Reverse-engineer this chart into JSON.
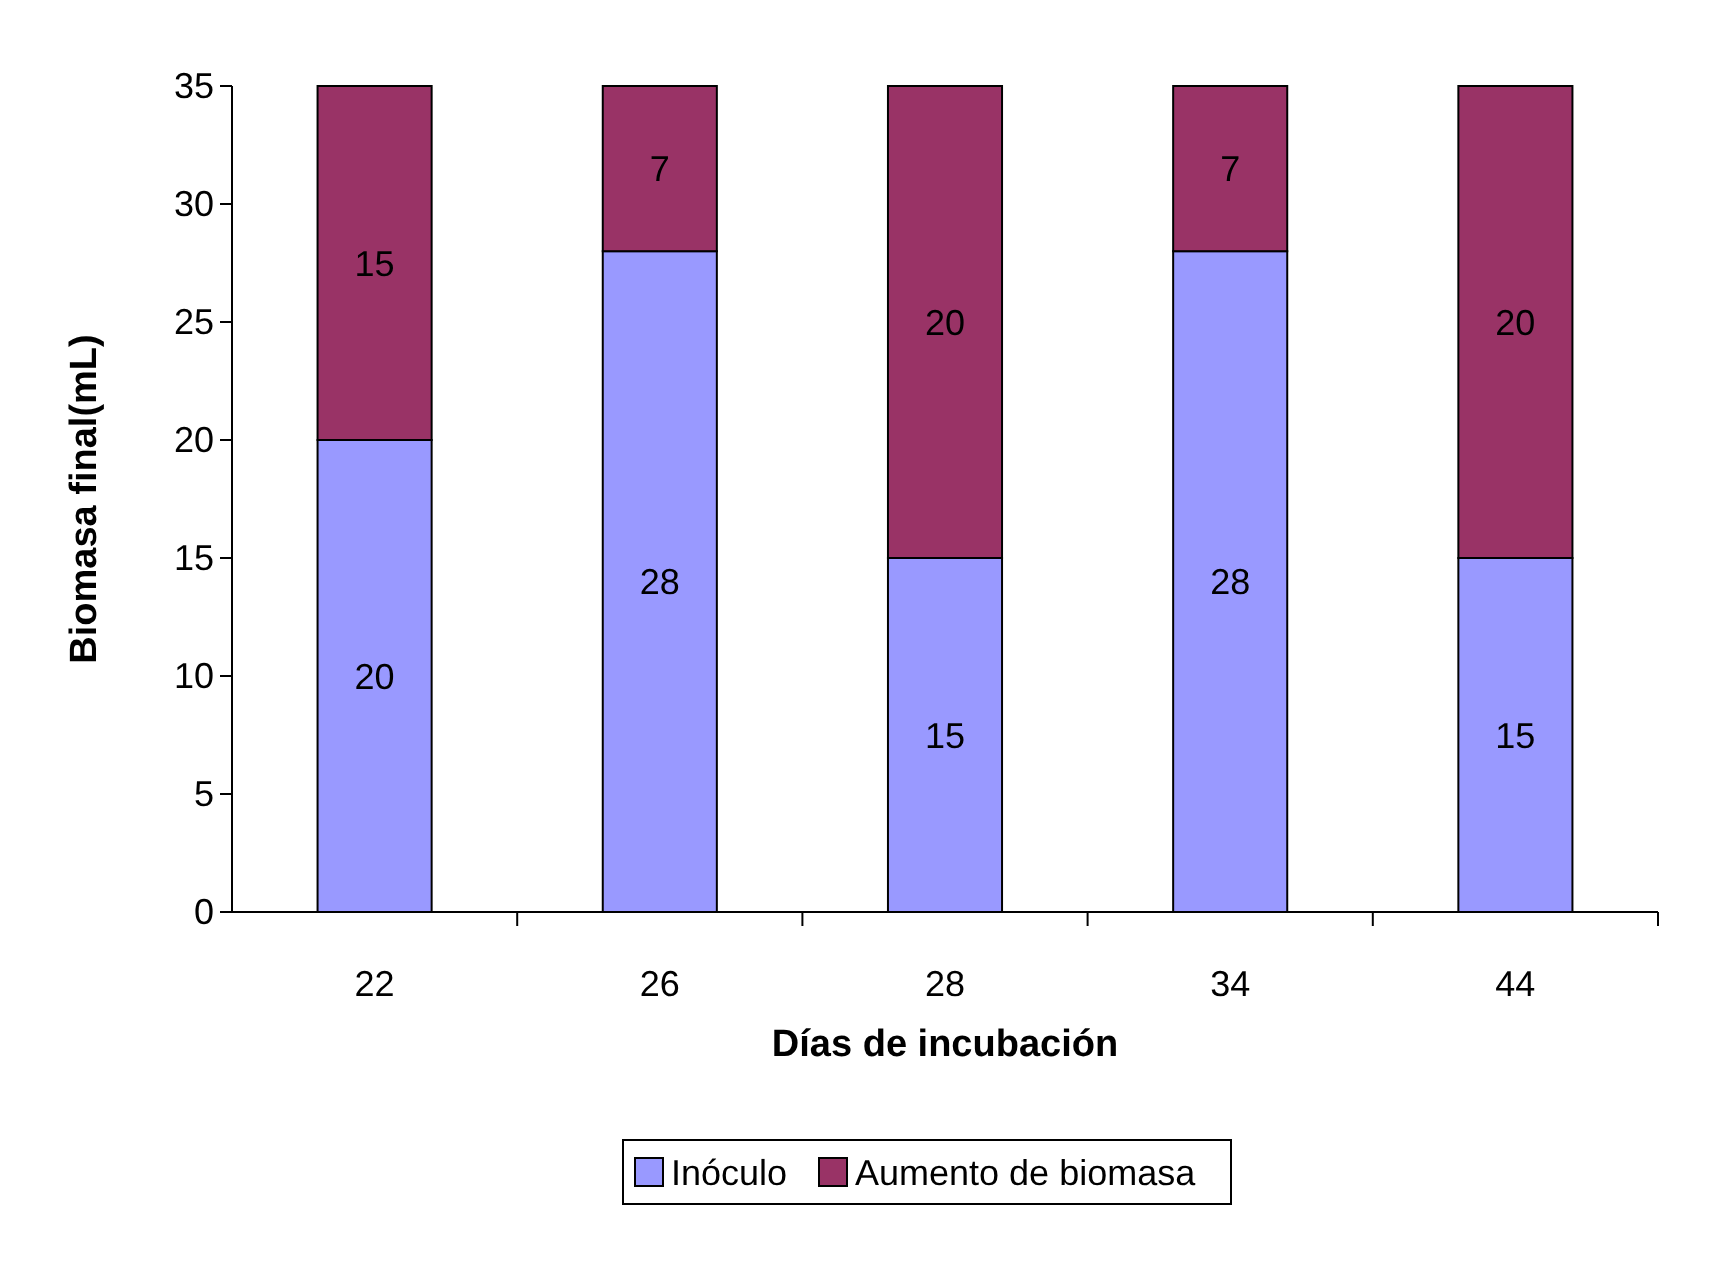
{
  "chart_data": {
    "type": "bar",
    "stacked": true,
    "xlabel": "Días de incubación",
    "ylabel": "Biomasa final(mL)",
    "categories": [
      "22",
      "26",
      "28",
      "34",
      "44"
    ],
    "series": [
      {
        "name": "Inóculo",
        "color": "#9999ff",
        "values": [
          20,
          28,
          15,
          28,
          15
        ]
      },
      {
        "name": "Aumento de biomasa",
        "color": "#993366",
        "values": [
          15,
          7,
          20,
          7,
          20
        ]
      }
    ],
    "ylim": [
      0,
      35
    ],
    "yticks": [
      0,
      5,
      10,
      15,
      20,
      25,
      30,
      35
    ],
    "data_labels": true,
    "legend": "bottom",
    "grid": false
  }
}
